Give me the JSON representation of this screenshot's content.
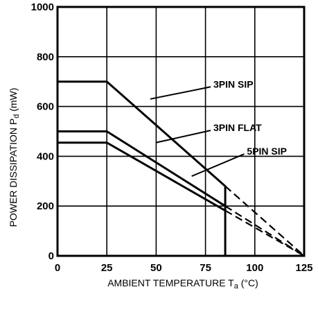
{
  "chart_data": {
    "type": "line",
    "xlabel": "AMBIENT TEMPERATURE T",
    "xlabel_sub": "a",
    "xlabel_unit": " (°C)",
    "ylabel": "POWER DISSIPATION P",
    "ylabel_sub": "d",
    "ylabel_unit": " (mW)",
    "xlim": [
      0,
      125
    ],
    "ylim": [
      0,
      1000
    ],
    "x_ticks": [
      "0",
      "25",
      "50",
      "75",
      "100",
      "125"
    ],
    "y_ticks": [
      "0",
      "200",
      "400",
      "600",
      "800",
      "1000"
    ],
    "grid": true,
    "series": [
      {
        "name": "3PIN SIP",
        "solid": [
          [
            0,
            700
          ],
          [
            25,
            700
          ],
          [
            85,
            280
          ],
          [
            85,
            0
          ]
        ],
        "dashed": [
          [
            85,
            280
          ],
          [
            125,
            0
          ]
        ]
      },
      {
        "name": "3PIN FLAT",
        "solid": [
          [
            0,
            500
          ],
          [
            25,
            500
          ],
          [
            85,
            200
          ]
        ],
        "dashed": [
          [
            85,
            200
          ],
          [
            125,
            0
          ]
        ]
      },
      {
        "name": "5PIN SIP",
        "solid": [
          [
            0,
            455
          ],
          [
            25,
            455
          ],
          [
            85,
            182
          ]
        ],
        "dashed": [
          [
            85,
            182
          ],
          [
            125,
            0
          ]
        ]
      }
    ],
    "annotations": [
      {
        "label": "3PIN SIP",
        "x": 79,
        "y": 690,
        "arrow_to": [
          47,
          630
        ]
      },
      {
        "label": "3PIN FLAT",
        "x": 79,
        "y": 515,
        "arrow_to": [
          50,
          455
        ]
      },
      {
        "label": "5PIN SIP",
        "x": 96,
        "y": 420,
        "arrow_to": [
          68,
          320
        ]
      }
    ]
  }
}
